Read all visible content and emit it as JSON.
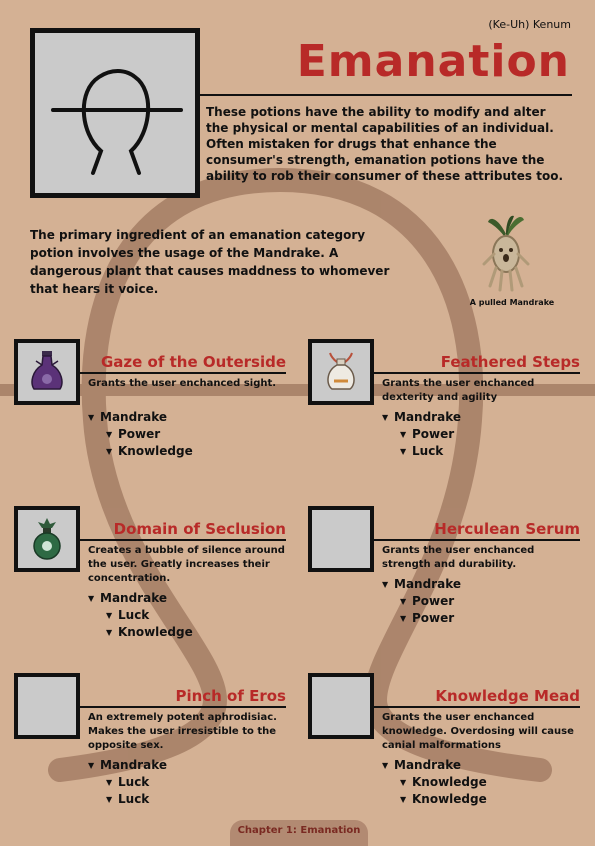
{
  "header": {
    "author": "(Ke-Uh) Kenum",
    "title": "Emanation",
    "symbol_icon": "ohm-like-emanation-glyph"
  },
  "intro": "These potions have the ability to modify and alter the physical or mental capabilities of an individual. Often mistaken for drugs that enhance the consumer's strength, emanation potions have the ability to rob their consumer of these attributes too.",
  "ingredient_text": "The primary ingredient of an emanation category potion involves the usage of the Mandrake. A dangerous plant that causes maddness to whomever that hears it voice.",
  "mandrake": {
    "caption": "A pulled Mandrake",
    "icon": "mandrake-plant-icon"
  },
  "potions": [
    {
      "name": "Gaze of the Outerside",
      "icon": "purple-flask-icon",
      "desc": "Grants the user enchanced sight.",
      "ingredient": "Mandrake",
      "attributes": [
        "Power",
        "Knowledge"
      ]
    },
    {
      "name": "Feathered Steps",
      "icon": "white-feather-flask-icon",
      "desc": "Grants the user enchanced dexterity and agility",
      "ingredient": "Mandrake",
      "attributes": [
        "Power",
        "Luck"
      ]
    },
    {
      "name": "Domain of Seclusion",
      "icon": "green-round-flask-icon",
      "desc": "Creates a bubble of silence around the user. Greatly increases their concentration.",
      "ingredient": "Mandrake",
      "attributes": [
        "Luck",
        "Knowledge"
      ]
    },
    {
      "name": "Herculean Serum",
      "icon": "empty-image-placeholder",
      "desc": "Grants the user enchanced strength and durability.",
      "ingredient": "Mandrake",
      "attributes": [
        "Power",
        "Power"
      ]
    },
    {
      "name": "Pinch of Eros",
      "icon": "empty-image-placeholder",
      "desc": "An extremely potent aphrodisiac. Makes the user irresistible to the opposite sex.",
      "ingredient": "Mandrake",
      "attributes": [
        "Luck",
        "Luck"
      ]
    },
    {
      "name": "Knowledge Mead",
      "icon": "empty-image-placeholder",
      "desc": "Grants the user enchanced knowledge. Overdosing will cause canial malformations",
      "ingredient": "Mandrake",
      "attributes": [
        "Knowledge",
        "Knowledge"
      ]
    }
  ],
  "footer": "Chapter 1: Emanation",
  "colors": {
    "background": "#d4b194",
    "accent_red": "#b82a28",
    "glyph_brown": "#a57e65",
    "frame_fill": "#cacaca",
    "footer_tab": "#b28a72"
  }
}
